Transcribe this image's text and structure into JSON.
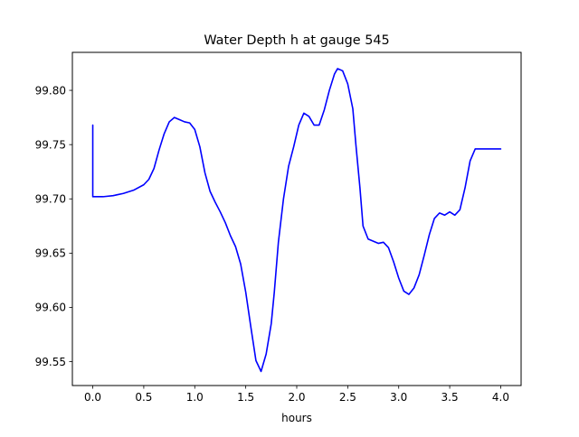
{
  "chart_data": {
    "type": "line",
    "title": "Water Depth h at gauge 545",
    "xlabel": "hours",
    "ylabel": "",
    "xlim": [
      -0.2,
      4.2
    ],
    "ylim": [
      99.528,
      99.835
    ],
    "xticks": [
      0.0,
      0.5,
      1.0,
      1.5,
      2.0,
      2.5,
      3.0,
      3.5,
      4.0
    ],
    "xtick_labels": [
      "0.0",
      "0.5",
      "1.0",
      "1.5",
      "2.0",
      "2.5",
      "3.0",
      "3.5",
      "4.0"
    ],
    "yticks": [
      99.55,
      99.6,
      99.65,
      99.7,
      99.75,
      99.8
    ],
    "ytick_labels": [
      "99.55",
      "99.60",
      "99.65",
      "99.70",
      "99.75",
      "99.80"
    ],
    "grid": false,
    "series": [
      {
        "color": "#0000ff",
        "x": [
          0.0,
          0.0,
          0.05,
          0.1,
          0.2,
          0.3,
          0.4,
          0.5,
          0.55,
          0.6,
          0.65,
          0.7,
          0.75,
          0.8,
          0.85,
          0.9,
          0.95,
          1.0,
          1.05,
          1.1,
          1.15,
          1.2,
          1.25,
          1.3,
          1.35,
          1.4,
          1.45,
          1.5,
          1.55,
          1.6,
          1.65,
          1.7,
          1.75,
          1.78,
          1.82,
          1.87,
          1.92,
          1.97,
          2.02,
          2.07,
          2.12,
          2.17,
          2.22,
          2.27,
          2.32,
          2.37,
          2.4,
          2.45,
          2.5,
          2.55,
          2.58,
          2.62,
          2.65,
          2.7,
          2.75,
          2.8,
          2.85,
          2.9,
          2.95,
          3.0,
          3.05,
          3.1,
          3.15,
          3.2,
          3.25,
          3.3,
          3.35,
          3.4,
          3.45,
          3.5,
          3.55,
          3.6,
          3.65,
          3.7,
          3.75,
          3.8,
          3.85,
          3.9,
          3.95,
          4.0
        ],
        "y": [
          99.768,
          99.702,
          99.702,
          99.702,
          99.703,
          99.705,
          99.708,
          99.713,
          99.718,
          99.728,
          99.745,
          99.76,
          99.771,
          99.775,
          99.773,
          99.771,
          99.77,
          99.764,
          99.748,
          99.724,
          99.707,
          99.697,
          99.688,
          99.678,
          99.666,
          99.656,
          99.64,
          99.614,
          99.582,
          99.551,
          99.541,
          99.557,
          99.585,
          99.614,
          99.66,
          99.7,
          99.73,
          99.748,
          99.768,
          99.779,
          99.776,
          99.768,
          99.768,
          99.782,
          99.8,
          99.815,
          99.82,
          99.818,
          99.806,
          99.783,
          99.75,
          99.71,
          99.675,
          99.663,
          99.661,
          99.659,
          99.66,
          99.655,
          99.642,
          99.627,
          99.615,
          99.612,
          99.618,
          99.63,
          99.648,
          99.667,
          99.682,
          99.687,
          99.685,
          99.688,
          99.685,
          99.69,
          99.71,
          99.735,
          99.746,
          99.746,
          99.746,
          99.746,
          99.746,
          99.746
        ]
      }
    ]
  }
}
